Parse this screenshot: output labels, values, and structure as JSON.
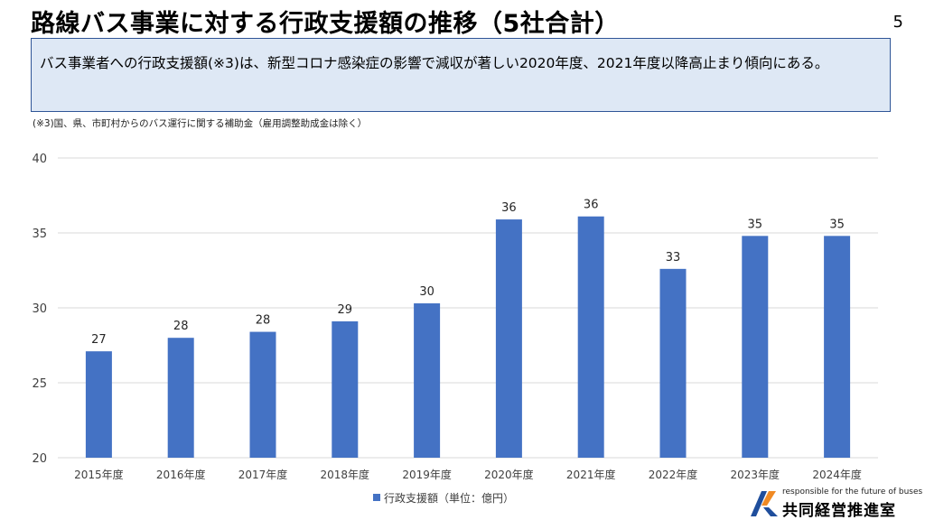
{
  "header": {
    "title": "路線バス事業に対する行政支援額の推移（5社合計）",
    "page_number": "5"
  },
  "summary": {
    "text": "バス事業者への行政支援額(※3)は、新型コロナ感染症の影響で減収が著しい2020年度、2021年度以降高止まり傾向にある。"
  },
  "footnote": "(※3)国、県、市町村からのバス運行に関する補助金（雇用調整助成金は除く）",
  "chart_data": {
    "type": "bar",
    "categories": [
      "2015年度",
      "2016年度",
      "2017年度",
      "2018年度",
      "2019年度",
      "2020年度",
      "2021年度",
      "2022年度",
      "2023年度",
      "2024年度"
    ],
    "series": [
      {
        "name": "行政支援額（単位：億円）",
        "values": [
          27.1,
          28.0,
          28.4,
          29.1,
          30.3,
          35.9,
          36.1,
          32.6,
          34.8,
          34.8
        ],
        "data_labels": [
          "27",
          "28",
          "28",
          "29",
          "30",
          "36",
          "36",
          "33",
          "35",
          "35"
        ]
      }
    ],
    "ylim": [
      20,
      40
    ],
    "yticks": [
      "20",
      "25",
      "30",
      "35",
      "40"
    ],
    "grid": true,
    "legend_position": "bottom",
    "bar_color": "#4472c4"
  },
  "logo": {
    "tagline": "responsible for the future of buses",
    "name": "共同経営推進室",
    "colors": {
      "blue": "#1f4e9c",
      "orange": "#f08a24"
    }
  }
}
